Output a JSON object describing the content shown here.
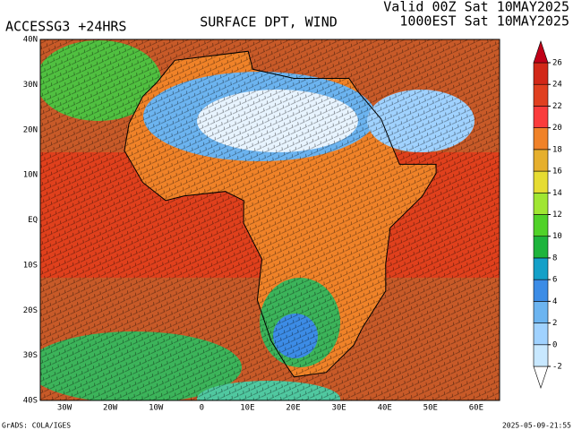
{
  "header": {
    "model": "ACCESSG3 +24HRS",
    "title": "SURFACE DPT, WIND",
    "valid": "Valid 00Z Sat 10MAY2025",
    "local": "1000EST Sat 10MAY2025"
  },
  "latitude_labels": [
    "40N",
    "30N",
    "20N",
    "10N",
    "EQ",
    "10S",
    "20S",
    "30S",
    "40S"
  ],
  "longitude_labels": [
    "30W",
    "20W",
    "10W",
    "0",
    "10E",
    "20E",
    "30E",
    "40E",
    "50E",
    "60E"
  ],
  "colorbar": {
    "levels": [
      -2,
      0,
      2,
      4,
      6,
      8,
      10,
      12,
      14,
      16,
      18,
      20,
      22,
      24,
      26
    ],
    "colors": [
      "#ffffff",
      "#c8e8ff",
      "#a0d2ff",
      "#6cb4f0",
      "#3c8ce6",
      "#14a0c8",
      "#1eb43c",
      "#50d228",
      "#a0e632",
      "#e6dc32",
      "#e6af2d",
      "#f08228",
      "#fa3c3c",
      "#e04020",
      "#d22818",
      "#c00018"
    ]
  },
  "footer": {
    "credit": "GrADS: COLA/IGES",
    "timestamp": "2025-05-09-21:55"
  }
}
